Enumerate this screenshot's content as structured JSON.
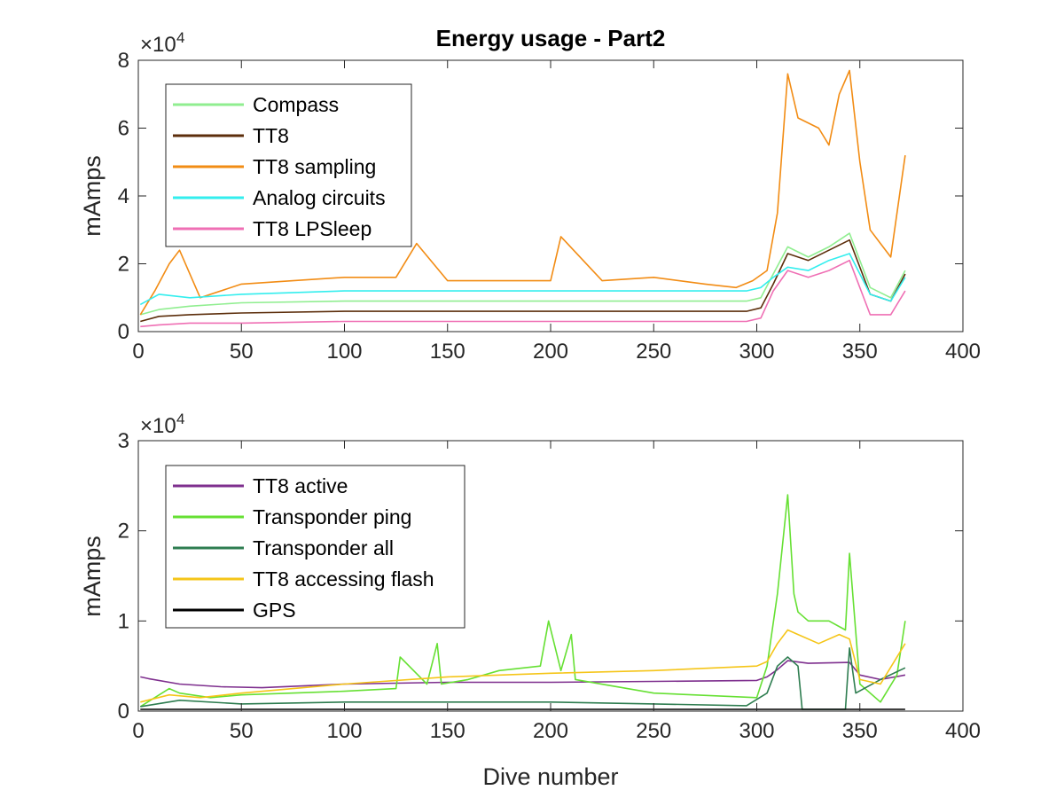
{
  "chart_data": [
    {
      "type": "line",
      "title": "Energy usage - Part2",
      "xlabel": "",
      "ylabel": "mAmps",
      "exponent_label": "×10",
      "exponent_power": "4",
      "xlim": [
        0,
        400
      ],
      "ylim": [
        0,
        8
      ],
      "xticks": [
        "0",
        "50",
        "100",
        "150",
        "200",
        "250",
        "300",
        "350",
        "400"
      ],
      "yticks": [
        "0",
        "2",
        "4",
        "6",
        "8"
      ],
      "grid": false,
      "legend_position": "top-left",
      "series": [
        {
          "name": "Compass",
          "color": "#90ee90",
          "x": [
            1,
            10,
            25,
            50,
            100,
            150,
            200,
            250,
            295,
            302,
            308,
            315,
            325,
            335,
            345,
            355,
            365,
            372
          ],
          "y": [
            0.5,
            0.65,
            0.75,
            0.85,
            0.9,
            0.9,
            0.9,
            0.9,
            0.9,
            1.0,
            1.7,
            2.5,
            2.2,
            2.5,
            2.9,
            1.3,
            1.0,
            1.8
          ]
        },
        {
          "name": "TT8",
          "color": "#5c2e0b",
          "x": [
            1,
            10,
            25,
            50,
            100,
            150,
            200,
            250,
            295,
            302,
            308,
            315,
            325,
            335,
            345,
            355,
            365,
            372
          ],
          "y": [
            0.3,
            0.45,
            0.5,
            0.55,
            0.6,
            0.6,
            0.6,
            0.6,
            0.6,
            0.7,
            1.4,
            2.3,
            2.1,
            2.4,
            2.7,
            1.1,
            0.9,
            1.7
          ]
        },
        {
          "name": "TT8 sampling",
          "color": "#f28c14",
          "x": [
            1,
            8,
            15,
            20,
            30,
            50,
            75,
            100,
            125,
            135,
            150,
            175,
            200,
            205,
            225,
            250,
            275,
            290,
            298,
            305,
            310,
            315,
            320,
            330,
            335,
            340,
            345,
            350,
            355,
            360,
            365,
            372
          ],
          "y": [
            0.5,
            1.2,
            2.0,
            2.4,
            1.0,
            1.4,
            1.5,
            1.6,
            1.6,
            2.6,
            1.5,
            1.5,
            1.5,
            2.8,
            1.5,
            1.6,
            1.4,
            1.3,
            1.5,
            1.8,
            3.5,
            7.6,
            6.3,
            6.0,
            5.5,
            7.0,
            7.7,
            5.0,
            3.0,
            2.6,
            2.2,
            5.2
          ]
        },
        {
          "name": "Analog circuits",
          "color": "#33eeee",
          "x": [
            1,
            10,
            25,
            50,
            100,
            150,
            200,
            250,
            295,
            302,
            308,
            315,
            325,
            335,
            345,
            355,
            365,
            372
          ],
          "y": [
            0.8,
            1.1,
            1.0,
            1.1,
            1.2,
            1.2,
            1.2,
            1.2,
            1.2,
            1.3,
            1.6,
            1.9,
            1.8,
            2.1,
            2.3,
            1.1,
            0.9,
            1.6
          ]
        },
        {
          "name": "TT8 LPSleep",
          "color": "#ef6fb4",
          "x": [
            1,
            10,
            25,
            50,
            100,
            150,
            200,
            250,
            295,
            302,
            308,
            315,
            325,
            335,
            345,
            355,
            365,
            372
          ],
          "y": [
            0.15,
            0.2,
            0.25,
            0.25,
            0.3,
            0.3,
            0.3,
            0.3,
            0.3,
            0.4,
            1.2,
            1.8,
            1.6,
            1.8,
            2.1,
            0.5,
            0.5,
            1.2
          ]
        }
      ]
    },
    {
      "type": "line",
      "title": "",
      "xlabel": "Dive number",
      "ylabel": "mAmps",
      "exponent_label": "×10",
      "exponent_power": "4",
      "xlim": [
        0,
        400
      ],
      "ylim": [
        0,
        3
      ],
      "xticks": [
        "0",
        "50",
        "100",
        "150",
        "200",
        "250",
        "300",
        "350",
        "400"
      ],
      "yticks": [
        "0",
        "1",
        "2",
        "3"
      ],
      "grid": false,
      "legend_position": "top-left",
      "series": [
        {
          "name": "TT8 active",
          "color": "#7e2f8e",
          "x": [
            1,
            5,
            20,
            40,
            60,
            100,
            150,
            200,
            250,
            300,
            305,
            310,
            315,
            325,
            345,
            350,
            360,
            372
          ],
          "y": [
            0.38,
            0.36,
            0.3,
            0.27,
            0.26,
            0.3,
            0.32,
            0.32,
            0.33,
            0.34,
            0.38,
            0.46,
            0.56,
            0.53,
            0.54,
            0.4,
            0.35,
            0.4
          ]
        },
        {
          "name": "Transponder ping",
          "color": "#66e033",
          "x": [
            1,
            15,
            20,
            35,
            50,
            100,
            125,
            127,
            140,
            145,
            147,
            160,
            175,
            195,
            199,
            205,
            210,
            212,
            250,
            300,
            305,
            310,
            315,
            318,
            320,
            325,
            335,
            343,
            345,
            350,
            360,
            368,
            372
          ],
          "y": [
            0.05,
            0.25,
            0.2,
            0.15,
            0.18,
            0.22,
            0.25,
            0.6,
            0.3,
            0.75,
            0.3,
            0.35,
            0.45,
            0.5,
            1.0,
            0.45,
            0.85,
            0.35,
            0.2,
            0.15,
            0.5,
            1.3,
            2.4,
            1.3,
            1.1,
            1.0,
            1.0,
            0.9,
            1.75,
            0.3,
            0.1,
            0.4,
            1.0
          ]
        },
        {
          "name": "Transponder all",
          "color": "#2e7d50",
          "x": [
            1,
            20,
            50,
            100,
            150,
            200,
            250,
            295,
            305,
            310,
            315,
            320,
            322,
            340,
            343,
            345,
            348,
            360,
            372
          ],
          "y": [
            0.05,
            0.12,
            0.08,
            0.1,
            0.1,
            0.1,
            0.08,
            0.06,
            0.2,
            0.5,
            0.6,
            0.5,
            0.02,
            0.02,
            0.02,
            0.7,
            0.2,
            0.35,
            0.48
          ]
        },
        {
          "name": "TT8 accessing flash",
          "color": "#f5c518",
          "x": [
            1,
            15,
            30,
            50,
            100,
            150,
            200,
            250,
            300,
            305,
            310,
            315,
            320,
            330,
            340,
            345,
            350,
            360,
            372
          ],
          "y": [
            0.1,
            0.18,
            0.15,
            0.2,
            0.3,
            0.38,
            0.42,
            0.45,
            0.5,
            0.55,
            0.75,
            0.9,
            0.85,
            0.75,
            0.85,
            0.8,
            0.35,
            0.3,
            0.75
          ]
        },
        {
          "name": "GPS",
          "color": "#000000",
          "x": [
            1,
            50,
            100,
            150,
            200,
            250,
            300,
            350,
            372
          ],
          "y": [
            0.02,
            0.02,
            0.02,
            0.02,
            0.02,
            0.02,
            0.02,
            0.02,
            0.02
          ]
        }
      ]
    }
  ]
}
